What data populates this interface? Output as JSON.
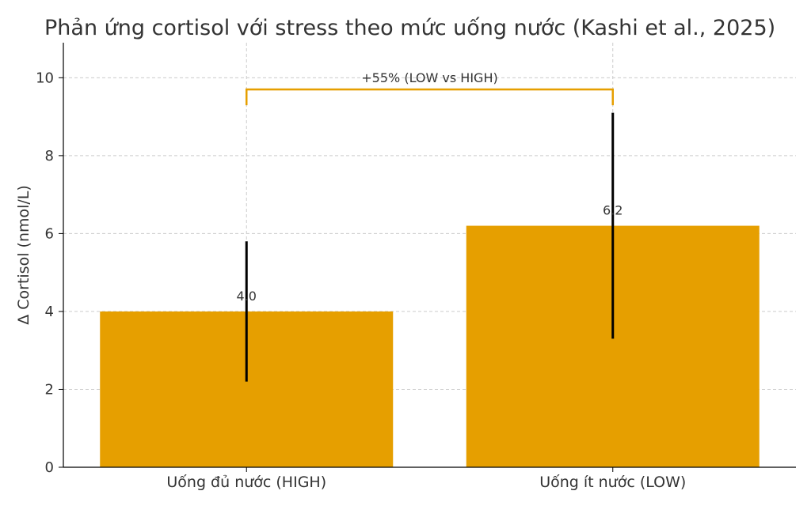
{
  "chart_data": {
    "type": "bar",
    "title": "Phản ứng cortisol với stress theo mức uống nước (Kashi et al., 2025)",
    "ylabel": "Δ Cortisol (nmol/L)",
    "xlabel": "",
    "categories": [
      "Uống đủ nước (HIGH)",
      "Uống ít nước (LOW)"
    ],
    "values": [
      4.0,
      6.2
    ],
    "data_labels": [
      "4.0",
      "6.2"
    ],
    "error_bars": [
      {
        "low": 2.2,
        "high": 5.8
      },
      {
        "low": 3.3,
        "high": 9.1
      }
    ],
    "ylim": [
      0,
      10.9
    ],
    "yticks": [
      0,
      2,
      4,
      6,
      8,
      10
    ],
    "grid": true,
    "bar_color": "#E69F00",
    "error_color": "#000000",
    "annotation": {
      "text": "+55% (LOW vs HIGH)",
      "from_category": 0,
      "to_category": 1,
      "bracket_y": 9.7,
      "color": "#E69F00"
    }
  }
}
